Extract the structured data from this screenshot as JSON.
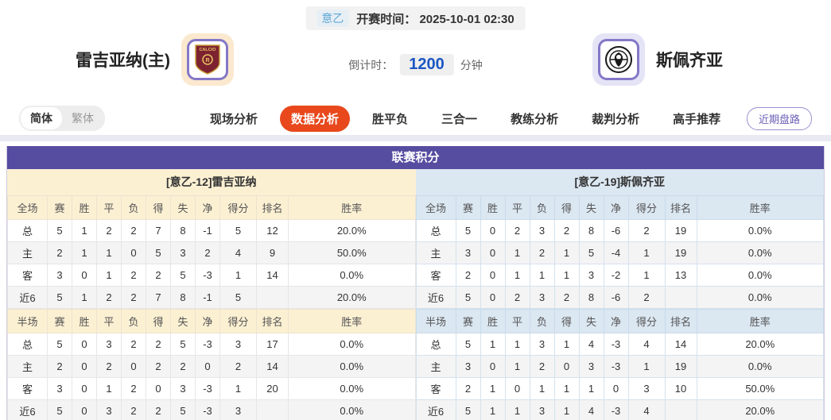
{
  "page": {
    "league_badge": "意乙",
    "kickoff_text": "开赛时间： 2025-10-01 02:30",
    "home_team_name": "雷吉亚纳(主)",
    "away_team_name": "斯佩齐亚",
    "countdown_label": "倒计时：",
    "countdown_value": "1200",
    "countdown_unit": "分钟"
  },
  "nav": {
    "lang_simplified": "简体",
    "lang_traditional": "繁体",
    "tabs": [
      {
        "label": "现场分析",
        "active": false
      },
      {
        "label": "数据分析",
        "active": true
      },
      {
        "label": "胜平负",
        "active": false
      },
      {
        "label": "三合一",
        "active": false
      },
      {
        "label": "教练分析",
        "active": false
      },
      {
        "label": "裁判分析",
        "active": false
      },
      {
        "label": "高手推荐",
        "active": false
      }
    ],
    "recent_trends_button": "近期盘路"
  },
  "league_table": {
    "title": "联赛积分",
    "home": {
      "header": "[意乙-12]雷吉亚纳",
      "full": {
        "columns": [
          "全场",
          "赛",
          "胜",
          "平",
          "负",
          "得",
          "失",
          "净",
          "得分",
          "排名",
          "胜率"
        ],
        "rows": [
          [
            "总",
            "5",
            "1",
            "2",
            "2",
            "7",
            "8",
            "-1",
            "5",
            "12",
            "20.0%"
          ],
          [
            "主",
            "2",
            "1",
            "1",
            "0",
            "5",
            "3",
            "2",
            "4",
            "9",
            "50.0%"
          ],
          [
            "客",
            "3",
            "0",
            "1",
            "2",
            "2",
            "5",
            "-3",
            "1",
            "14",
            "0.0%"
          ],
          [
            "近6",
            "5",
            "1",
            "2",
            "2",
            "7",
            "8",
            "-1",
            "5",
            "",
            "20.0%"
          ]
        ]
      },
      "half": {
        "columns": [
          "半场",
          "赛",
          "胜",
          "平",
          "负",
          "得",
          "失",
          "净",
          "得分",
          "排名",
          "胜率"
        ],
        "rows": [
          [
            "总",
            "5",
            "0",
            "3",
            "2",
            "2",
            "5",
            "-3",
            "3",
            "17",
            "0.0%"
          ],
          [
            "主",
            "2",
            "0",
            "2",
            "0",
            "2",
            "2",
            "0",
            "2",
            "14",
            "0.0%"
          ],
          [
            "客",
            "3",
            "0",
            "1",
            "2",
            "0",
            "3",
            "-3",
            "1",
            "20",
            "0.0%"
          ],
          [
            "近6",
            "5",
            "0",
            "3",
            "2",
            "2",
            "5",
            "-3",
            "3",
            "",
            "0.0%"
          ]
        ]
      }
    },
    "away": {
      "header": "[意乙-19]斯佩齐亚",
      "full": {
        "columns": [
          "全场",
          "赛",
          "胜",
          "平",
          "负",
          "得",
          "失",
          "净",
          "得分",
          "排名",
          "胜率"
        ],
        "rows": [
          [
            "总",
            "5",
            "0",
            "2",
            "3",
            "2",
            "8",
            "-6",
            "2",
            "19",
            "0.0%"
          ],
          [
            "主",
            "3",
            "0",
            "1",
            "2",
            "1",
            "5",
            "-4",
            "1",
            "19",
            "0.0%"
          ],
          [
            "客",
            "2",
            "0",
            "1",
            "1",
            "1",
            "3",
            "-2",
            "1",
            "13",
            "0.0%"
          ],
          [
            "近6",
            "5",
            "0",
            "2",
            "3",
            "2",
            "8",
            "-6",
            "2",
            "",
            "0.0%"
          ]
        ]
      },
      "half": {
        "columns": [
          "半场",
          "赛",
          "胜",
          "平",
          "负",
          "得",
          "失",
          "净",
          "得分",
          "排名",
          "胜率"
        ],
        "rows": [
          [
            "总",
            "5",
            "1",
            "1",
            "3",
            "1",
            "4",
            "-3",
            "4",
            "14",
            "20.0%"
          ],
          [
            "主",
            "3",
            "0",
            "1",
            "2",
            "0",
            "3",
            "-3",
            "1",
            "19",
            "0.0%"
          ],
          [
            "客",
            "2",
            "1",
            "0",
            "1",
            "1",
            "1",
            "0",
            "3",
            "10",
            "50.0%"
          ],
          [
            "近6",
            "5",
            "1",
            "1",
            "3",
            "1",
            "4",
            "-3",
            "4",
            "",
            "20.0%"
          ]
        ]
      }
    },
    "home_row_label": "主",
    "away_row_label": "客"
  },
  "colors": {
    "accent_purple": "#564CA0",
    "active_tab_orange": "#E8481C",
    "home_panel_bg": "#FCF0D3",
    "away_panel_bg": "#DBE7F1",
    "home_row_red": "#D42B2B",
    "away_row_blue": "#1F3CC0",
    "countdown_blue": "#1A56C4",
    "league_badge_blue": "#5FA8D6"
  }
}
